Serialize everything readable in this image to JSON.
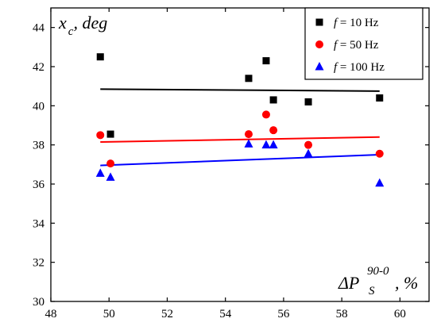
{
  "chart_data": {
    "type": "scatter",
    "xlim": [
      48,
      61
    ],
    "ylim": [
      30,
      45
    ],
    "x_ticks": [
      48,
      50,
      52,
      54,
      56,
      58,
      60
    ],
    "y_ticks": [
      30,
      32,
      34,
      36,
      38,
      40,
      42,
      44
    ],
    "xlabel": {
      "main": "ΔP",
      "subscript": "S",
      "superscript": "90-0",
      "suffix": ", %"
    },
    "ylabel": {
      "main": "x",
      "subscript": "c",
      "suffix": ", deg"
    },
    "legend_position": "top-right",
    "grid": false,
    "series": [
      {
        "name": "f = 10 Hz",
        "legend_italic": "f",
        "legend_rest": " = 10 Hz",
        "marker": "square",
        "color": "#000000",
        "points": [
          [
            49.7,
            42.5
          ],
          [
            50.05,
            38.55
          ],
          [
            54.8,
            41.4
          ],
          [
            55.4,
            42.3
          ],
          [
            55.65,
            40.3
          ],
          [
            56.85,
            40.2
          ],
          [
            59.3,
            40.4
          ]
        ],
        "fit": [
          [
            49.7,
            40.85
          ],
          [
            59.3,
            40.75
          ]
        ]
      },
      {
        "name": "f = 50 Hz",
        "legend_italic": "f",
        "legend_rest": " = 50 Hz",
        "marker": "circle",
        "color": "#ff0000",
        "points": [
          [
            49.7,
            38.5
          ],
          [
            50.05,
            37.05
          ],
          [
            54.8,
            38.55
          ],
          [
            55.4,
            39.55
          ],
          [
            55.65,
            38.75
          ],
          [
            56.85,
            38.0
          ],
          [
            59.3,
            37.55
          ]
        ],
        "fit": [
          [
            49.7,
            38.15
          ],
          [
            59.3,
            38.4
          ]
        ]
      },
      {
        "name": "f = 100 Hz",
        "legend_italic": "f",
        "legend_rest": " = 100 Hz",
        "marker": "triangle",
        "color": "#0000ff",
        "points": [
          [
            49.7,
            36.55
          ],
          [
            50.05,
            36.35
          ],
          [
            54.8,
            38.05
          ],
          [
            55.4,
            38.0
          ],
          [
            55.65,
            38.0
          ],
          [
            56.85,
            37.55
          ],
          [
            59.3,
            36.05
          ]
        ],
        "fit": [
          [
            49.7,
            36.95
          ],
          [
            59.3,
            37.5
          ]
        ]
      }
    ]
  }
}
